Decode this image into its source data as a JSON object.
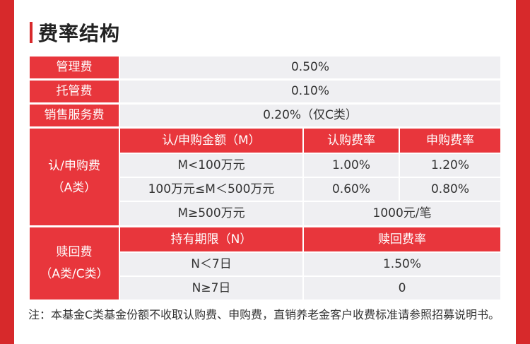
{
  "section_title": "费率结构",
  "rows": {
    "management": {
      "label": "管理费",
      "value": "0.50%"
    },
    "custody": {
      "label": "托管费",
      "value": "0.10%"
    },
    "sales": {
      "label": "销售服务费",
      "value": "0.20%（仅C类）"
    }
  },
  "subscription": {
    "label_line1": "认/申购费",
    "label_line2": "（A类）",
    "headers": {
      "amount": "认/申购金额（M）",
      "subscribe": "认购费率",
      "purchase": "申购费率"
    },
    "tiers": [
      {
        "amount": "M<100万元",
        "subscribe": "1.00%",
        "purchase": "1.20%"
      },
      {
        "amount": "100万元≤M＜500万元",
        "subscribe": "0.60%",
        "purchase": "0.80%"
      },
      {
        "amount": "M≥500万元",
        "fee": "1000元/笔"
      }
    ]
  },
  "redemption": {
    "label_line1": "赎回费",
    "label_line2": "（A类/C类）",
    "headers": {
      "period": "持有期限（N）",
      "rate": "赎回费率"
    },
    "tiers": [
      {
        "period": "N＜7日",
        "rate": "1.50%"
      },
      {
        "period": "N≥7日",
        "rate": "0"
      }
    ]
  },
  "note": "注：本基金C类基金份额不收取认购费、申购费，直销养老金客户收费标准请参照招募说明书。"
}
